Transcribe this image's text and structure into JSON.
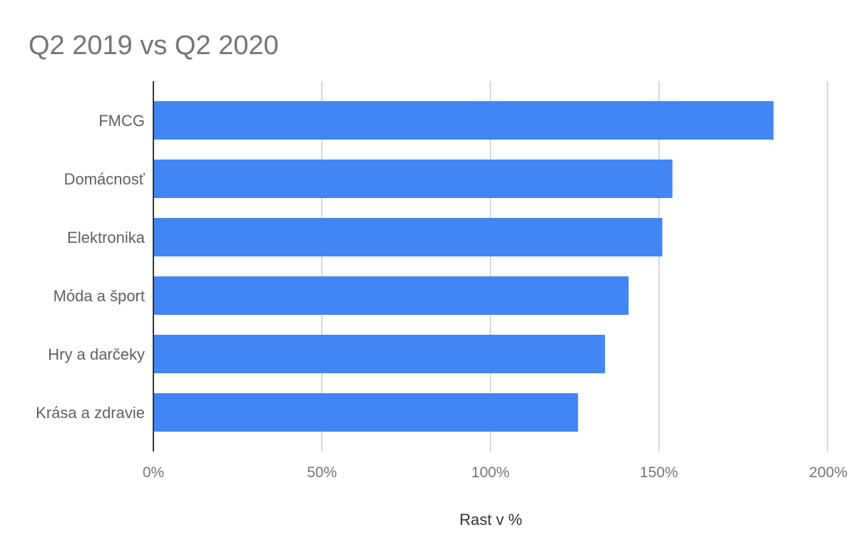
{
  "chart_data": {
    "type": "bar",
    "orientation": "horizontal",
    "title": "Q2 2019 vs Q2 2020",
    "xlabel": "Rast v %",
    "ylabel": "",
    "categories": [
      "FMCG",
      "Domácnosť",
      "Elektronika",
      "Móda a šport",
      "Hry a darčeky",
      "Krása a zdravie"
    ],
    "values": [
      184,
      154,
      151,
      141,
      134,
      126
    ],
    "value_unit": "%",
    "xlim": [
      0,
      200
    ],
    "xticks": [
      0,
      50,
      100,
      150,
      200
    ],
    "xtick_labels": [
      "0%",
      "50%",
      "100%",
      "150%",
      "200%"
    ],
    "grid": true,
    "legend": "none",
    "bar_color": "#4285f4",
    "gridline_color": "#cccccc",
    "axis_color": "#333333"
  }
}
